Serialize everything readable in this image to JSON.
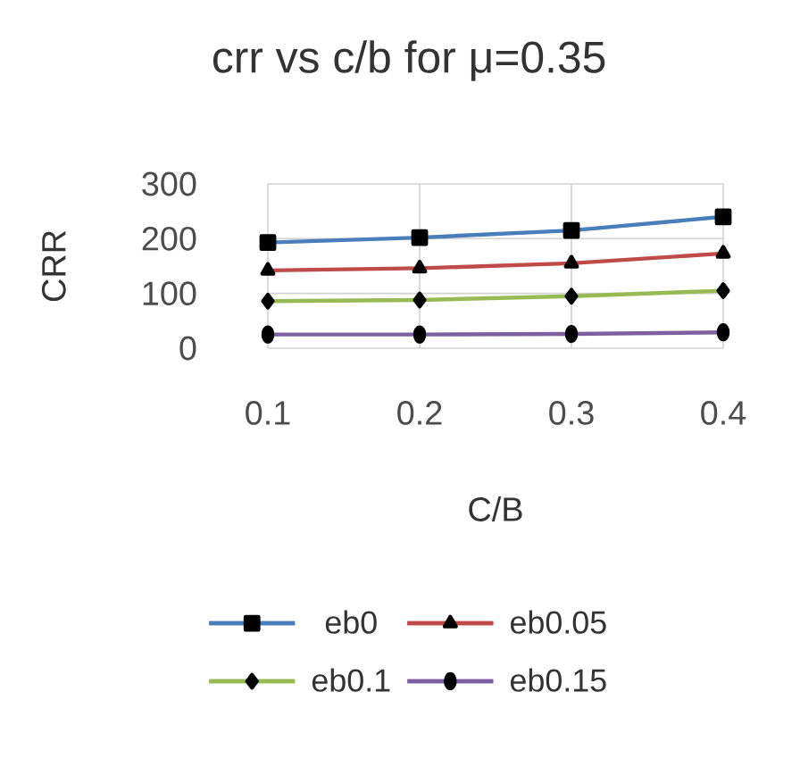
{
  "chart_data": {
    "type": "line",
    "title": "crr vs c/b  for μ=0.35",
    "xlabel": "C/B",
    "ylabel": "CRR",
    "x": [
      0.1,
      0.2,
      0.3,
      0.4
    ],
    "xlim": [
      0.1,
      0.4
    ],
    "xticks": [
      0.1,
      0.2,
      0.3,
      0.4
    ],
    "ylim": [
      0,
      300
    ],
    "yticks": [
      0,
      100,
      200,
      300
    ],
    "grid": true,
    "legend": "bottom",
    "line_style": "solid",
    "series": [
      {
        "name": "eb0",
        "color": "#4a7ebb",
        "marker": "square",
        "values": [
          193,
          202,
          215,
          240
        ]
      },
      {
        "name": "eb0.05",
        "color": "#be4b48",
        "marker": "triangle",
        "values": [
          142,
          146,
          155,
          173
        ]
      },
      {
        "name": "eb0.1",
        "color": "#98b954",
        "marker": "diamond",
        "values": [
          86,
          88,
          95,
          105
        ]
      },
      {
        "name": "eb0.15",
        "color": "#7d60a0",
        "marker": "circle",
        "values": [
          25,
          25,
          26,
          29
        ]
      }
    ]
  }
}
